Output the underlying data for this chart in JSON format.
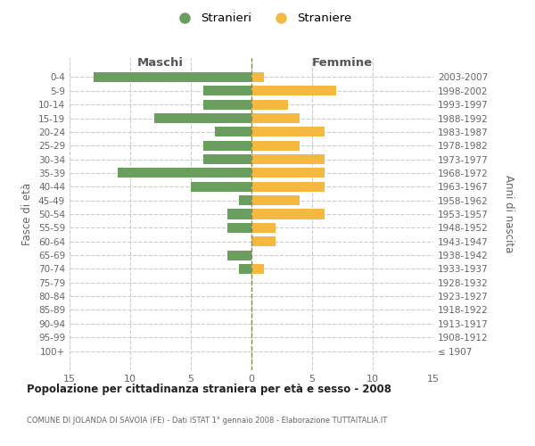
{
  "age_groups": [
    "100+",
    "95-99",
    "90-94",
    "85-89",
    "80-84",
    "75-79",
    "70-74",
    "65-69",
    "60-64",
    "55-59",
    "50-54",
    "45-49",
    "40-44",
    "35-39",
    "30-34",
    "25-29",
    "20-24",
    "15-19",
    "10-14",
    "5-9",
    "0-4"
  ],
  "birth_years": [
    "≤ 1907",
    "1908-1912",
    "1913-1917",
    "1918-1922",
    "1923-1927",
    "1928-1932",
    "1933-1937",
    "1938-1942",
    "1943-1947",
    "1948-1952",
    "1953-1957",
    "1958-1962",
    "1963-1967",
    "1968-1972",
    "1973-1977",
    "1978-1982",
    "1983-1987",
    "1988-1992",
    "1993-1997",
    "1998-2002",
    "2003-2007"
  ],
  "maschi": [
    0,
    0,
    0,
    0,
    0,
    0,
    1,
    2,
    0,
    2,
    2,
    1,
    5,
    11,
    4,
    4,
    3,
    8,
    4,
    4,
    13
  ],
  "femmine": [
    0,
    0,
    0,
    0,
    0,
    0,
    1,
    0,
    2,
    2,
    6,
    4,
    6,
    6,
    6,
    4,
    6,
    4,
    3,
    7,
    1
  ],
  "color_maschi": "#6a9e5e",
  "color_femmine": "#f5b942",
  "title": "Popolazione per cittadinanza straniera per età e sesso - 2008",
  "subtitle": "COMUNE DI JOLANDA DI SAVOIA (FE) - Dati ISTAT 1° gennaio 2008 - Elaborazione TUTTAITALIA.IT",
  "xlabel_left": "Maschi",
  "xlabel_right": "Femmine",
  "ylabel_left": "Fasce di età",
  "ylabel_right": "Anni di nascita",
  "legend_stranieri": "Stranieri",
  "legend_straniere": "Straniere",
  "xlim": 15,
  "background_color": "#ffffff",
  "grid_color": "#cccccc"
}
